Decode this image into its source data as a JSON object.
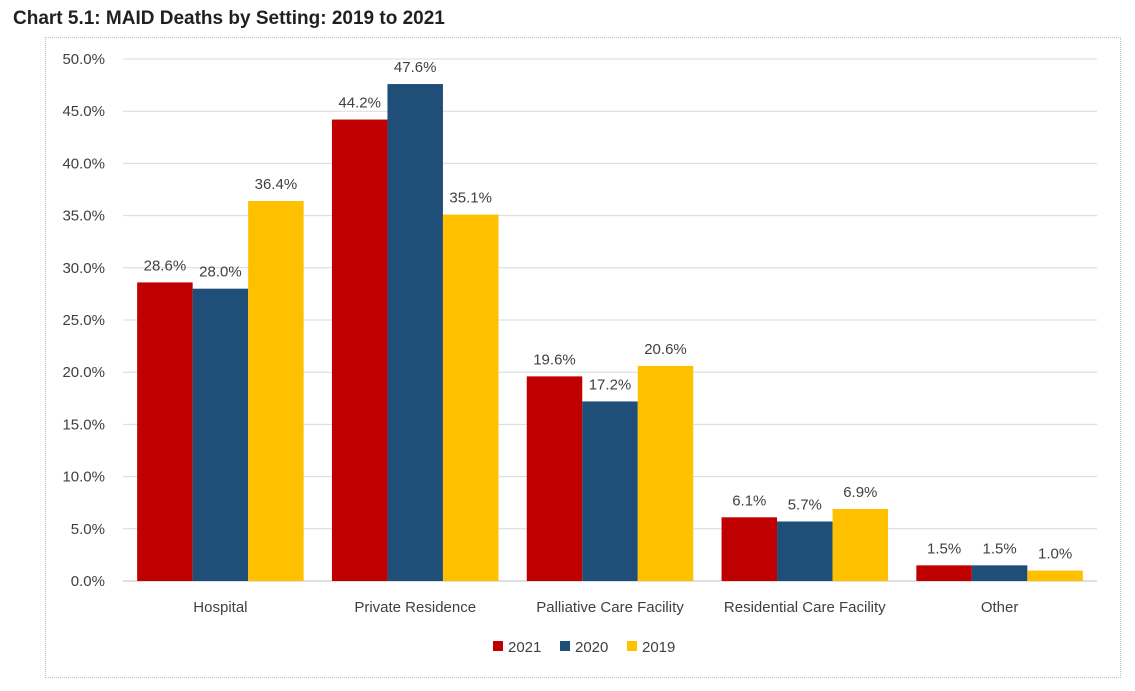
{
  "chart_data": {
    "type": "bar",
    "title": "Chart 5.1: MAID Deaths by Setting: 2019 to 2021",
    "xlabel": "",
    "ylabel": "",
    "categories": [
      "Hospital",
      "Private Residence",
      "Palliative Care Facility",
      "Residential Care Facility",
      "Other"
    ],
    "series": [
      {
        "name": "2021",
        "color": "#c00000",
        "values": [
          28.6,
          44.2,
          19.6,
          6.1,
          1.5
        ],
        "labels": [
          "28.6%",
          "44.2%",
          "19.6%",
          "6.1%",
          "1.5%"
        ]
      },
      {
        "name": "2020",
        "color": "#1f4e79",
        "values": [
          28.0,
          47.6,
          17.2,
          5.7,
          1.5
        ],
        "labels": [
          "28.0%",
          "47.6%",
          "17.2%",
          "5.7%",
          "1.5%"
        ]
      },
      {
        "name": "2019",
        "color": "#ffc000",
        "values": [
          36.4,
          35.1,
          20.6,
          6.9,
          1.0
        ],
        "labels": [
          "36.4%",
          "35.1%",
          "20.6%",
          "6.9%",
          "1.0%"
        ]
      }
    ],
    "ylim": [
      0,
      50
    ],
    "yticks": [
      0,
      5,
      10,
      15,
      20,
      25,
      30,
      35,
      40,
      45,
      50
    ],
    "ytick_labels": [
      "0.0%",
      "5.0%",
      "10.0%",
      "15.0%",
      "20.0%",
      "25.0%",
      "30.0%",
      "35.0%",
      "40.0%",
      "45.0%",
      "50.0%"
    ],
    "grid": true,
    "legend_position": "bottom"
  },
  "colors": {
    "gridline": "#d9d9d9",
    "axis": "#bfbfbf"
  }
}
